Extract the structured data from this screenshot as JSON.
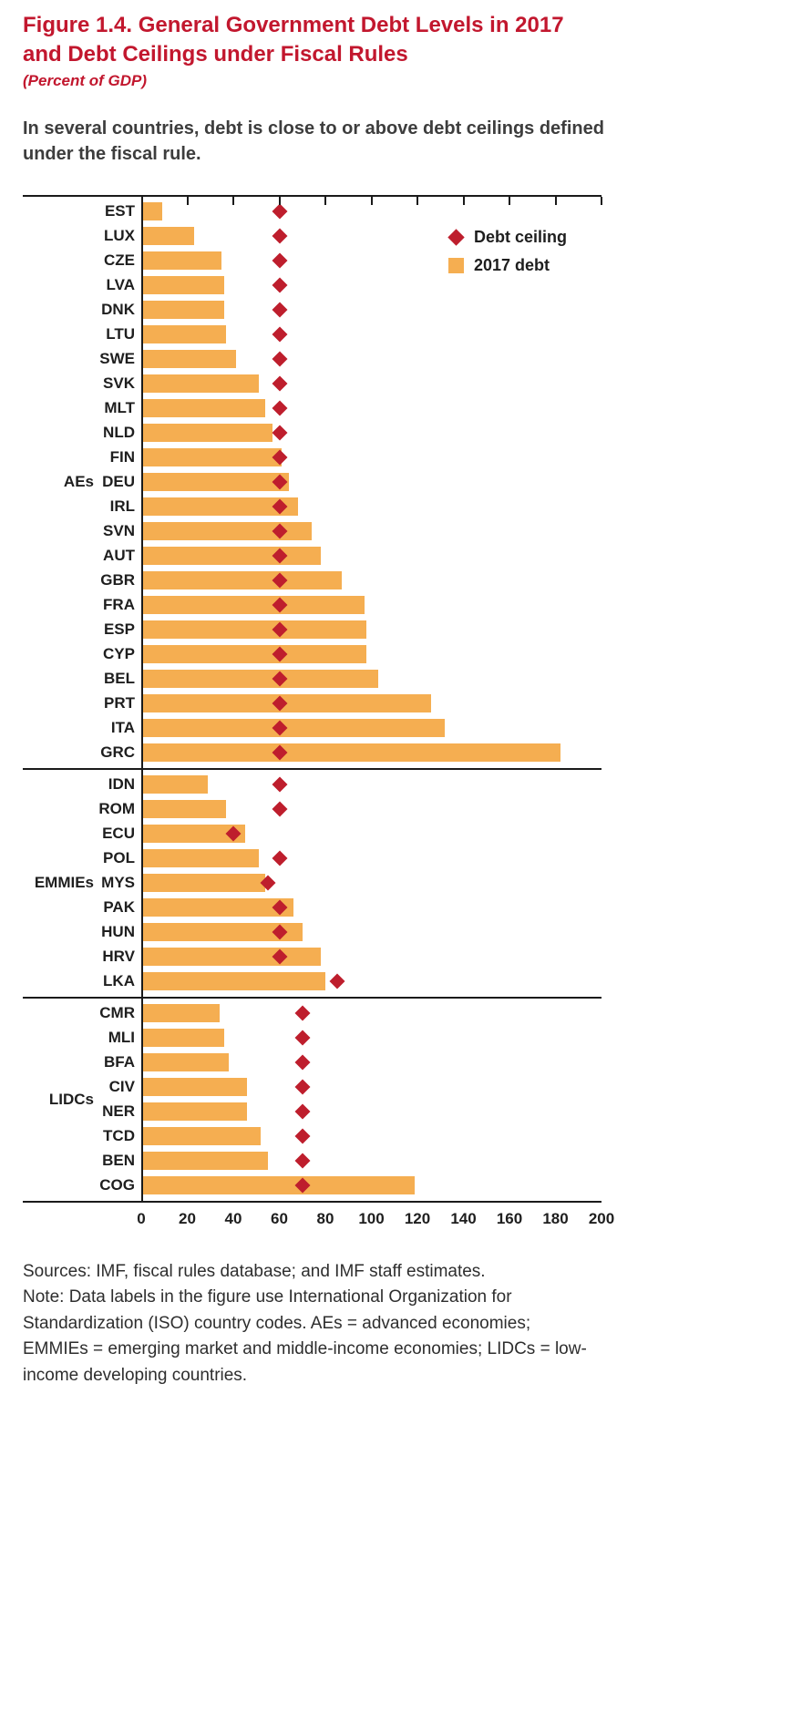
{
  "header": {
    "title_line1": "Figure 1.4. General Government Debt Levels in 2017",
    "title_line2": "and Debt Ceilings under Fiscal Rules",
    "subtitle": "(Percent of GDP)",
    "lead": "In several countries, debt is close to or above debt ceilings defined under the fiscal rule."
  },
  "colors": {
    "accent_red": "#C2172E",
    "marker_red": "#BE1E2D",
    "bar_orange": "#F5AE51",
    "axis_ink": "#1A1A1A"
  },
  "chart_data": {
    "type": "bar",
    "orientation": "horizontal",
    "title": "Figure 1.4. General Government Debt Levels in 2017 and Debt Ceilings under Fiscal Rules",
    "subtitle": "(Percent of GDP)",
    "unit": "Percent of GDP",
    "xlim": [
      0,
      200
    ],
    "xticks": [
      0,
      20,
      40,
      60,
      80,
      100,
      120,
      140,
      160,
      180,
      200
    ],
    "grid": false,
    "legend_position": "top-right-inside",
    "legend": [
      {
        "label": "Debt ceiling",
        "marker": "diamond",
        "color": "#BE1E2D"
      },
      {
        "label": "2017 debt",
        "marker": "square",
        "color": "#F5AE51"
      }
    ],
    "series_note": "debt = 2017 debt bar value; ceiling = debt ceiling diamond value; percent of GDP",
    "groups": [
      {
        "label": "AEs",
        "rows": [
          {
            "code": "EST",
            "debt": 9,
            "ceiling": 60
          },
          {
            "code": "LUX",
            "debt": 23,
            "ceiling": 60
          },
          {
            "code": "CZE",
            "debt": 35,
            "ceiling": 60
          },
          {
            "code": "LVA",
            "debt": 36,
            "ceiling": 60
          },
          {
            "code": "DNK",
            "debt": 36,
            "ceiling": 60
          },
          {
            "code": "LTU",
            "debt": 37,
            "ceiling": 60
          },
          {
            "code": "SWE",
            "debt": 41,
            "ceiling": 60
          },
          {
            "code": "SVK",
            "debt": 51,
            "ceiling": 60
          },
          {
            "code": "MLT",
            "debt": 54,
            "ceiling": 60
          },
          {
            "code": "NLD",
            "debt": 57,
            "ceiling": 60
          },
          {
            "code": "FIN",
            "debt": 61,
            "ceiling": 60
          },
          {
            "code": "DEU",
            "debt": 64,
            "ceiling": 60
          },
          {
            "code": "IRL",
            "debt": 68,
            "ceiling": 60
          },
          {
            "code": "SVN",
            "debt": 74,
            "ceiling": 60
          },
          {
            "code": "AUT",
            "debt": 78,
            "ceiling": 60
          },
          {
            "code": "GBR",
            "debt": 87,
            "ceiling": 60
          },
          {
            "code": "FRA",
            "debt": 97,
            "ceiling": 60
          },
          {
            "code": "ESP",
            "debt": 98,
            "ceiling": 60
          },
          {
            "code": "CYP",
            "debt": 98,
            "ceiling": 60
          },
          {
            "code": "BEL",
            "debt": 103,
            "ceiling": 60
          },
          {
            "code": "PRT",
            "debt": 126,
            "ceiling": 60
          },
          {
            "code": "ITA",
            "debt": 132,
            "ceiling": 60
          },
          {
            "code": "GRC",
            "debt": 182,
            "ceiling": 60
          }
        ]
      },
      {
        "label": "EMMIEs",
        "rows": [
          {
            "code": "IDN",
            "debt": 29,
            "ceiling": 60
          },
          {
            "code": "ROM",
            "debt": 37,
            "ceiling": 60
          },
          {
            "code": "ECU",
            "debt": 45,
            "ceiling": 40
          },
          {
            "code": "POL",
            "debt": 51,
            "ceiling": 60
          },
          {
            "code": "MYS",
            "debt": 54,
            "ceiling": 55
          },
          {
            "code": "PAK",
            "debt": 66,
            "ceiling": 60
          },
          {
            "code": "HUN",
            "debt": 70,
            "ceiling": 60
          },
          {
            "code": "HRV",
            "debt": 78,
            "ceiling": 60
          },
          {
            "code": "LKA",
            "debt": 80,
            "ceiling": 85
          }
        ]
      },
      {
        "label": "LIDCs",
        "rows": [
          {
            "code": "CMR",
            "debt": 34,
            "ceiling": 70
          },
          {
            "code": "MLI",
            "debt": 36,
            "ceiling": 70
          },
          {
            "code": "BFA",
            "debt": 38,
            "ceiling": 70
          },
          {
            "code": "CIV",
            "debt": 46,
            "ceiling": 70
          },
          {
            "code": "NER",
            "debt": 46,
            "ceiling": 70
          },
          {
            "code": "TCD",
            "debt": 52,
            "ceiling": 70
          },
          {
            "code": "BEN",
            "debt": 55,
            "ceiling": 70
          },
          {
            "code": "COG",
            "debt": 119,
            "ceiling": 70
          }
        ]
      }
    ]
  },
  "footer": {
    "sources": "Sources: IMF, fiscal rules database; and IMF staff estimates.",
    "note": "Note: Data labels in the figure use International Organization for Standardization (ISO) country codes. AEs = advanced economies; EMMIEs = emerging market and middle-income economies; LIDCs = low-income developing countries."
  }
}
